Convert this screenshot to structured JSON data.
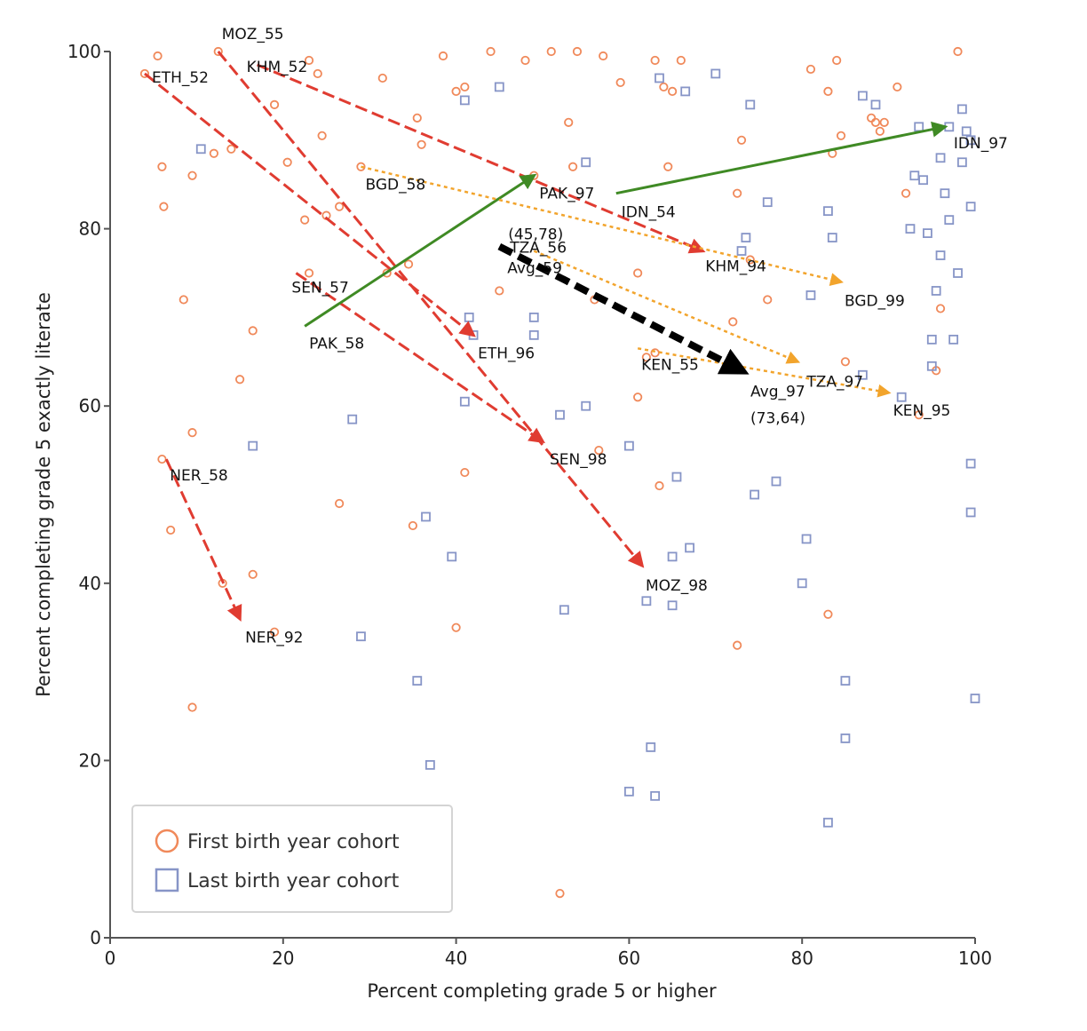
{
  "chart_data": {
    "type": "scatter",
    "xlabel": "Percent completing grade 5 or higher",
    "ylabel": "Percent completing grade 5 exactly literate",
    "xlim": [
      0,
      100
    ],
    "ylim": [
      0,
      100
    ],
    "xticks": [
      "0",
      "20",
      "40",
      "60",
      "80",
      "100"
    ],
    "yticks": [
      "0",
      "20",
      "40",
      "60",
      "80",
      "100"
    ],
    "grid": false,
    "legend_position": "bottom-left",
    "colors": {
      "first": "#f0895a",
      "last": "#8795c7",
      "decline": "#e03c31",
      "improve": "#3f8a24",
      "moderate": "#f2a42c",
      "average": "#000000"
    },
    "series": [
      {
        "name": "First birth year cohort",
        "marker": "circle",
        "points": [
          [
            5.5,
            99.5
          ],
          [
            6,
            87
          ],
          [
            6.2,
            82.5
          ],
          [
            9.5,
            86
          ],
          [
            8.5,
            72
          ],
          [
            4,
            97.5
          ],
          [
            12,
            88.5
          ],
          [
            14,
            89
          ],
          [
            12.5,
            100
          ],
          [
            15,
            63
          ],
          [
            16.5,
            68.5
          ],
          [
            19,
            94
          ],
          [
            20.5,
            87.5
          ],
          [
            22.5,
            81
          ],
          [
            23,
            75
          ],
          [
            23,
            99
          ],
          [
            24,
            97.5
          ],
          [
            24.5,
            90.5
          ],
          [
            25,
            81.5
          ],
          [
            26.5,
            82.5
          ],
          [
            29,
            87
          ],
          [
            31.5,
            97
          ],
          [
            32,
            75
          ],
          [
            34.5,
            76
          ],
          [
            35.5,
            92.5
          ],
          [
            36,
            89.5
          ],
          [
            38.5,
            99.5
          ],
          [
            40,
            95.5
          ],
          [
            41,
            96
          ],
          [
            45,
            73
          ],
          [
            44,
            100
          ],
          [
            48,
            99
          ],
          [
            49,
            86
          ],
          [
            51,
            100
          ],
          [
            53,
            92
          ],
          [
            53.5,
            87
          ],
          [
            54,
            100
          ],
          [
            56,
            72
          ],
          [
            57,
            99.5
          ],
          [
            59,
            96.5
          ],
          [
            61,
            75
          ],
          [
            63,
            99
          ],
          [
            64,
            96
          ],
          [
            66,
            99
          ],
          [
            65,
            95.5
          ],
          [
            64.5,
            87
          ],
          [
            72,
            69.5
          ],
          [
            72.5,
            84
          ],
          [
            73,
            90
          ],
          [
            74,
            76.5
          ],
          [
            76,
            72
          ],
          [
            81,
            98
          ],
          [
            83,
            95.5
          ],
          [
            83.5,
            88.5
          ],
          [
            84,
            99
          ],
          [
            84.5,
            90.5
          ],
          [
            88,
            92.5
          ],
          [
            88.5,
            92
          ],
          [
            89,
            91
          ],
          [
            89.5,
            92
          ],
          [
            91,
            96
          ],
          [
            92,
            84
          ],
          [
            96,
            71
          ],
          [
            95.5,
            64
          ],
          [
            98,
            100
          ],
          [
            6,
            54
          ],
          [
            7,
            46
          ],
          [
            9.5,
            57
          ],
          [
            9.5,
            26
          ],
          [
            13,
            40
          ],
          [
            16.5,
            41
          ],
          [
            19,
            34.5
          ],
          [
            26.5,
            49
          ],
          [
            35,
            46.5
          ],
          [
            40,
            35
          ],
          [
            41,
            52.5
          ],
          [
            52,
            5
          ],
          [
            56.5,
            55
          ],
          [
            61,
            61
          ],
          [
            63.5,
            51
          ],
          [
            62,
            65.5
          ],
          [
            63,
            66
          ],
          [
            83,
            36.5
          ],
          [
            72.5,
            33
          ],
          [
            85,
            65
          ],
          [
            93.5,
            59
          ]
        ]
      },
      {
        "name": "Last birth year cohort",
        "marker": "square",
        "points": [
          [
            10.5,
            89
          ],
          [
            16.5,
            55.5
          ],
          [
            28,
            58.5
          ],
          [
            29,
            34
          ],
          [
            35.5,
            29
          ],
          [
            36.5,
            47.5
          ],
          [
            37,
            19.5
          ],
          [
            39.5,
            43
          ],
          [
            41,
            94.5
          ],
          [
            41,
            60.5
          ],
          [
            41.5,
            70
          ],
          [
            42,
            68
          ],
          [
            45,
            96
          ],
          [
            49,
            70
          ],
          [
            49,
            68
          ],
          [
            52,
            59
          ],
          [
            52.5,
            37
          ],
          [
            55,
            87.5
          ],
          [
            55,
            60
          ],
          [
            60,
            55.5
          ],
          [
            60,
            16.5
          ],
          [
            62,
            38
          ],
          [
            62.5,
            21.5
          ],
          [
            63,
            16
          ],
          [
            63.5,
            97
          ],
          [
            65,
            43
          ],
          [
            65,
            37.5
          ],
          [
            65.5,
            52
          ],
          [
            66.5,
            95.5
          ],
          [
            67,
            44
          ],
          [
            70,
            97.5
          ],
          [
            73,
            77.5
          ],
          [
            73.5,
            79
          ],
          [
            74,
            94
          ],
          [
            74.5,
            50
          ],
          [
            76,
            83
          ],
          [
            77,
            51.5
          ],
          [
            80,
            40
          ],
          [
            80.5,
            45
          ],
          [
            81,
            72.5
          ],
          [
            83,
            82
          ],
          [
            83.5,
            79
          ],
          [
            85,
            29
          ],
          [
            85,
            22.5
          ],
          [
            83,
            13
          ],
          [
            87,
            95
          ],
          [
            87,
            63.5
          ],
          [
            88.5,
            94
          ],
          [
            91.5,
            61
          ],
          [
            92.5,
            80
          ],
          [
            93,
            86
          ],
          [
            94,
            85.5
          ],
          [
            93.5,
            91.5
          ],
          [
            94.5,
            79.5
          ],
          [
            95,
            64.5
          ],
          [
            95,
            67.5
          ],
          [
            95.5,
            73
          ],
          [
            96,
            77
          ],
          [
            96,
            88
          ],
          [
            96.5,
            84
          ],
          [
            97,
            91.5
          ],
          [
            97,
            81
          ],
          [
            97.5,
            67.5
          ],
          [
            98,
            75
          ],
          [
            98.5,
            93.5
          ],
          [
            98.5,
            87.5
          ],
          [
            99,
            91
          ],
          [
            99.5,
            82.5
          ],
          [
            99.5,
            90
          ],
          [
            99.5,
            53.5
          ],
          [
            99.5,
            48
          ],
          [
            100,
            27
          ]
        ]
      }
    ],
    "trajectories": [
      {
        "kind": "decline",
        "start_label": "ETH_52",
        "end_label": "ETH_96",
        "start": [
          4,
          97.5
        ],
        "end": [
          42,
          68
        ]
      },
      {
        "kind": "decline",
        "start_label": "MOZ_55",
        "end_label": "MOZ_98",
        "start": [
          12.5,
          100
        ],
        "end": [
          61.5,
          42
        ]
      },
      {
        "kind": "decline",
        "start_label": "KHM_52",
        "end_label": "KHM_94",
        "start": [
          17,
          98.5
        ],
        "end": [
          68.5,
          77.5
        ]
      },
      {
        "kind": "decline",
        "start_label": "SEN_57",
        "end_label": "SEN_98",
        "start": [
          21.5,
          75
        ],
        "end": [
          50,
          56
        ]
      },
      {
        "kind": "decline",
        "start_label": "NER_58",
        "end_label": "NER_92",
        "start": [
          6.5,
          54
        ],
        "end": [
          15,
          36
        ]
      },
      {
        "kind": "improve",
        "start_label": "PAK_58",
        "end_label": "PAK_97",
        "start": [
          22.5,
          69
        ],
        "end": [
          49,
          86
        ]
      },
      {
        "kind": "improve",
        "start_label": "IDN_54",
        "end_label": "IDN_97",
        "start": [
          58.5,
          84
        ],
        "end": [
          96.5,
          91.5
        ]
      },
      {
        "kind": "moderate",
        "start_label": "BGD_58",
        "end_label": "BGD_99",
        "start": [
          29,
          87
        ],
        "end": [
          84.5,
          74
        ]
      },
      {
        "kind": "moderate",
        "start_label": "TZA_56",
        "end_label": "TZA_97",
        "start": [
          49,
          77.5
        ],
        "end": [
          79.5,
          65
        ]
      },
      {
        "kind": "moderate",
        "start_label": "KEN_55",
        "end_label": "KEN_95",
        "start": [
          61,
          66.5
        ],
        "end": [
          90,
          61.5
        ]
      }
    ],
    "average": {
      "start": [
        45,
        78
      ],
      "end": [
        73,
        64
      ],
      "start_label": "Avg_59",
      "end_label": "Avg_97",
      "start_coord_label": "(45,78)",
      "end_coord_label": "(73,64)"
    },
    "legend": [
      {
        "label": "First birth year cohort",
        "marker": "circle"
      },
      {
        "label": "Last birth year cohort",
        "marker": "square"
      }
    ]
  }
}
